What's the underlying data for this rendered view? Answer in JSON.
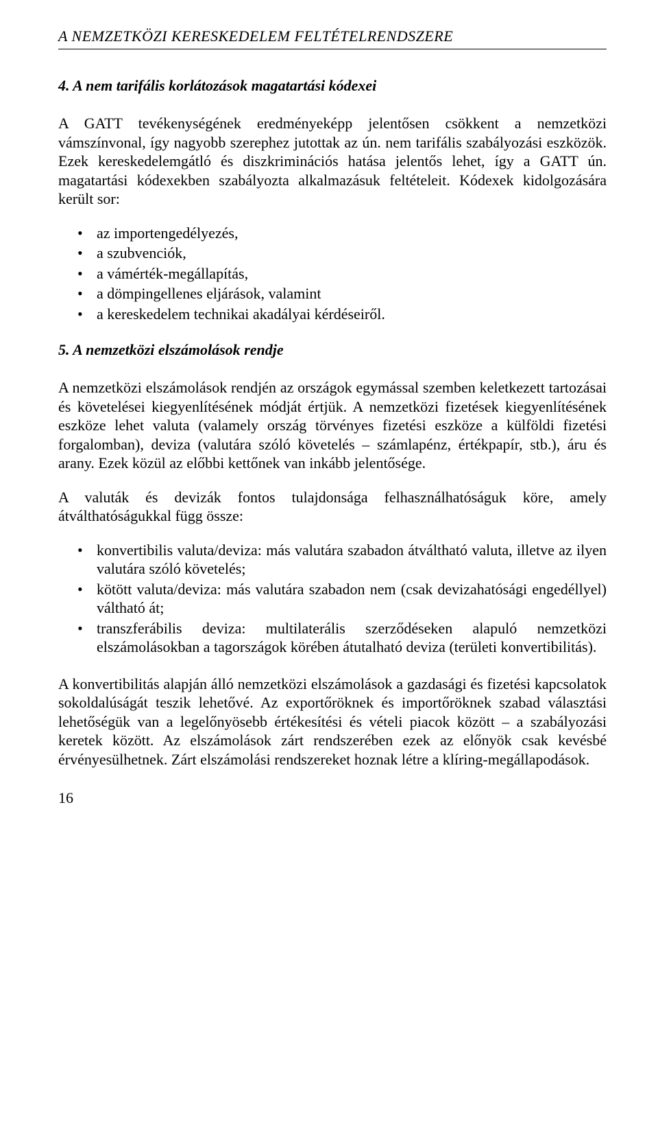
{
  "header": {
    "running_title": "A NEMZETKÖZI KERESKEDELEM FELTÉTELRENDSZERE"
  },
  "section4": {
    "heading": "4. A nem tarifális korlátozások magatartási kódexei",
    "para1": "A GATT tevékenységének eredményeképp jelentősen csökkent a nemzetközi vámszínvonal, így nagyobb szerephez jutottak az ún. nem tarifális szabályozási eszközök. Ezek kereskedelemgátló és diszkriminációs hatása jelentős lehet, így a GATT ún. magatartási kódexekben szabályozta alkalmazásuk feltételeit. Kódexek kidolgozására került sor:",
    "bullets": [
      "az importengedélyezés,",
      "a szubvenciók,",
      "a vámérték-megállapítás,",
      "a dömpingellenes eljárások, valamint",
      "a kereskedelem technikai akadályai kérdéseiről."
    ]
  },
  "section5": {
    "heading": "5. A nemzetközi elszámolások rendje",
    "para1": "A nemzetközi elszámolások rendjén az országok egymással szemben keletkezett tartozásai és követelései kiegyenlítésének módját értjük. A nemzetközi fizetések kiegyenlítésének eszköze lehet valuta (valamely ország törvényes fizetési eszköze a külföldi fizetési forgalomban), deviza (valutára szóló követelés – számlapénz, értékpapír, stb.), áru és arany. Ezek közül az előbbi kettőnek van inkább jelentősége.",
    "para2": "A valuták és devizák fontos tulajdonsága felhasználhatóságuk köre, amely átválthatóságukkal függ össze:",
    "bullets": [
      "konvertibilis valuta/deviza: más valutára szabadon átváltható valuta, illetve az ilyen valutára szóló követelés;",
      "kötött valuta/deviza: más valutára szabadon nem (csak devizahatósági engedéllyel) váltható át;",
      "transzferábilis deviza: multilaterális szerződéseken alapuló nemzetközi elszámolásokban a tagországok körében átutalható deviza (területi konvertibilitás)."
    ],
    "para3": "A konvertibilitás alapján álló nemzetközi elszámolások a gazdasági és fizetési kapcsolatok sokoldalúságát teszik lehetővé. Az exportőröknek és importőröknek szabad választási lehetőségük van a legelőnyösebb értékesítési és vételi piacok között – a szabályozási keretek között. Az elszámolások zárt rendszerében ezek az előnyök csak kevésbé érvényesülhetnek. Zárt elszámolási rendszereket hoznak létre a klíring-megállapodások."
  },
  "footer": {
    "page_number": "16"
  }
}
